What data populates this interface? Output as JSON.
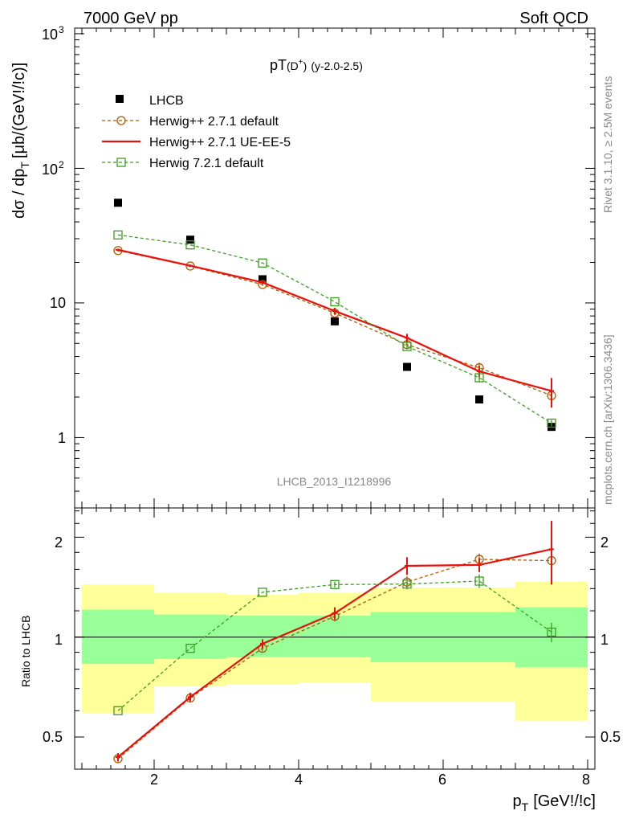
{
  "header": {
    "left": "7000 GeV pp",
    "right": "Soft QCD"
  },
  "side_labels": {
    "rivet": "Rivet 3.1.10, ≥ 2.5M events",
    "mcplots": "mcplots.cern.ch [arXiv:1306.3436]"
  },
  "chart_data": [
    {
      "type": "scatter",
      "title_main": "pT",
      "title_particle": "(D",
      "title_sup": "+",
      "title_close": ")",
      "title_range": "(y-2.0-2.5)",
      "ylabel": "dσ / dp",
      "ylabel_sub": "T",
      "ylabel_unit": "[μb/(GeV!/!c)]",
      "yscale": "log",
      "ylim": [
        0.3,
        1100
      ],
      "xlim": [
        0.9,
        8.1
      ],
      "analysis_label": "LHCB_2013_I1218996",
      "y_tick_labels": {
        "major": [
          "1",
          "10",
          "10",
          "10"
        ],
        "sup": [
          "",
          "",
          "2",
          "3"
        ],
        "values": [
          1,
          10,
          100,
          1000
        ]
      },
      "x": [
        1.5,
        2.5,
        3.5,
        4.5,
        5.5,
        6.5,
        7.5
      ],
      "series": [
        {
          "name": "LHCB",
          "style": "data",
          "color": "#000000",
          "values": [
            55.5,
            29.5,
            15.0,
            7.3,
            3.35,
            1.92,
            1.2
          ],
          "errors": [
            0,
            0,
            0,
            0,
            0,
            0,
            0
          ]
        },
        {
          "name": "Herwig++ 2.7.1 default",
          "style": "circle-dashed",
          "color": "#b35900",
          "values": [
            24.5,
            18.8,
            13.7,
            8.4,
            4.9,
            3.3,
            2.05
          ],
          "errors": [
            0.4,
            0.3,
            0.3,
            0.3,
            0.3,
            0.3,
            0.3
          ]
        },
        {
          "name": "Herwig++ 2.7.1 UE-EE-5",
          "style": "solid",
          "color": "#e8110c",
          "values": [
            24.8,
            18.9,
            14.2,
            8.7,
            5.5,
            3.1,
            2.22
          ],
          "errors": [
            0.5,
            0.4,
            0.3,
            0.5,
            0.4,
            0.3,
            0.55
          ]
        },
        {
          "name": "Herwig 7.2.1 default",
          "style": "square-dashed",
          "color": "#3a9e1e",
          "values": [
            32.0,
            27.0,
            19.8,
            10.2,
            4.75,
            2.78,
            1.28
          ],
          "errors": [
            0,
            0,
            0,
            0,
            0.2,
            0.2,
            0.07
          ]
        }
      ]
    },
    {
      "type": "scatter",
      "ylabel": "Ratio to LHCB",
      "xlabel": "p",
      "xlabel_sub": "T",
      "xlabel_unit": "[GeV!/!c]",
      "yscale": "log",
      "ylim": [
        0.4,
        2.45
      ],
      "xlim": [
        0.9,
        8.1
      ],
      "x_ticks": [
        2,
        4,
        6,
        8
      ],
      "x_tick_labels": [
        "2",
        "4",
        "6",
        "8"
      ],
      "y_ticks": [
        0.5,
        1,
        2
      ],
      "y_tick_labels": [
        "0.5",
        "1",
        "2"
      ],
      "reference_line": 1,
      "bands": [
        {
          "x": [
            1,
            2
          ],
          "inner": [
            0.83,
            1.21
          ],
          "outer": [
            0.59,
            1.44
          ],
          "inner_color": "#99ff99",
          "outer_color": "#ffff99"
        },
        {
          "x": [
            2,
            3
          ],
          "inner": [
            0.86,
            1.17
          ],
          "outer": [
            0.71,
            1.36
          ],
          "inner_color": "#99ff99",
          "outer_color": "#ffff99"
        },
        {
          "x": [
            3,
            4
          ],
          "inner": [
            0.87,
            1.16
          ],
          "outer": [
            0.72,
            1.34
          ],
          "inner_color": "#99ff99",
          "outer_color": "#ffff99"
        },
        {
          "x": [
            4,
            5
          ],
          "inner": [
            0.87,
            1.16
          ],
          "outer": [
            0.73,
            1.36
          ],
          "inner_color": "#99ff99",
          "outer_color": "#ffff99"
        },
        {
          "x": [
            5,
            7
          ],
          "inner": [
            0.84,
            1.19
          ],
          "outer": [
            0.64,
            1.41
          ],
          "inner_color": "#99ff99",
          "outer_color": "#ffff99"
        },
        {
          "x": [
            7,
            8
          ],
          "inner": [
            0.81,
            1.23
          ],
          "outer": [
            0.56,
            1.47
          ],
          "inner_color": "#99ff99",
          "outer_color": "#ffff99"
        }
      ],
      "x": [
        1.5,
        2.5,
        3.5,
        4.5,
        5.5,
        6.5,
        7.5
      ],
      "series": [
        {
          "name": "Herwig++ 2.7.1 default",
          "style": "circle-dashed",
          "color": "#b35900",
          "values": [
            0.43,
            0.655,
            0.925,
            1.155,
            1.465,
            1.715,
            1.7
          ],
          "errors": [
            0.01,
            0.015,
            0.02,
            0.04,
            0.06,
            0.07,
            0.1
          ]
        },
        {
          "name": "Herwig++ 2.7.1 UE-EE-5",
          "style": "solid",
          "color": "#e8110c",
          "values": [
            0.435,
            0.66,
            0.955,
            1.18,
            1.64,
            1.65,
            1.84
          ],
          "errors": [
            0.012,
            0.02,
            0.03,
            0.05,
            0.1,
            0.08,
            0.4
          ]
        },
        {
          "name": "Herwig 7.2.1 default",
          "style": "square-dashed",
          "color": "#3a9e1e",
          "values": [
            0.6,
            0.925,
            1.365,
            1.44,
            1.445,
            1.475,
            1.035
          ],
          "errors": [
            0,
            0,
            0,
            0.03,
            0.05,
            0.07,
            0.07
          ]
        }
      ]
    }
  ]
}
